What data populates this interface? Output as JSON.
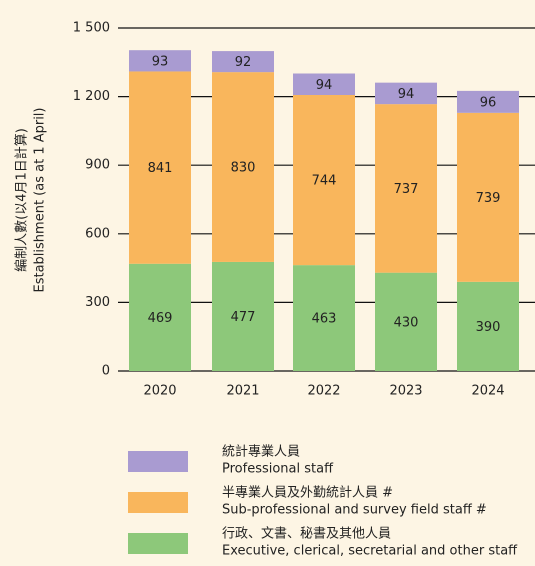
{
  "chart_data": {
    "type": "stacked_bar",
    "ylabel": [
      "編制人數(以4月1日計算)",
      "Establishment (as at 1 April)"
    ],
    "categories": [
      "2020",
      "2021",
      "2022",
      "2023",
      "2024"
    ],
    "series": [
      {
        "name": "行政、文書、秘書及其他人員",
        "name_en": "Executive, clerical, secretarial and other staff",
        "color": "#8dc87a",
        "values": [
          469,
          477,
          463,
          430,
          390
        ]
      },
      {
        "name": "半專業人員及外勤統計人員 #",
        "name_en": "Sub-professional and survey field staff #",
        "color": "#f9b65c",
        "values": [
          841,
          830,
          744,
          737,
          739
        ]
      },
      {
        "name": "統計專業人員",
        "name_en": "Professional staff",
        "color": "#a99bd1",
        "values": [
          93,
          92,
          94,
          94,
          96
        ]
      }
    ],
    "ylim": [
      0,
      1500
    ],
    "yticks": [
      0,
      300,
      600,
      900,
      {
        "value": 1200,
        "label": "1 200"
      },
      {
        "value": 1500,
        "label": "1 500"
      }
    ],
    "grid": true
  }
}
